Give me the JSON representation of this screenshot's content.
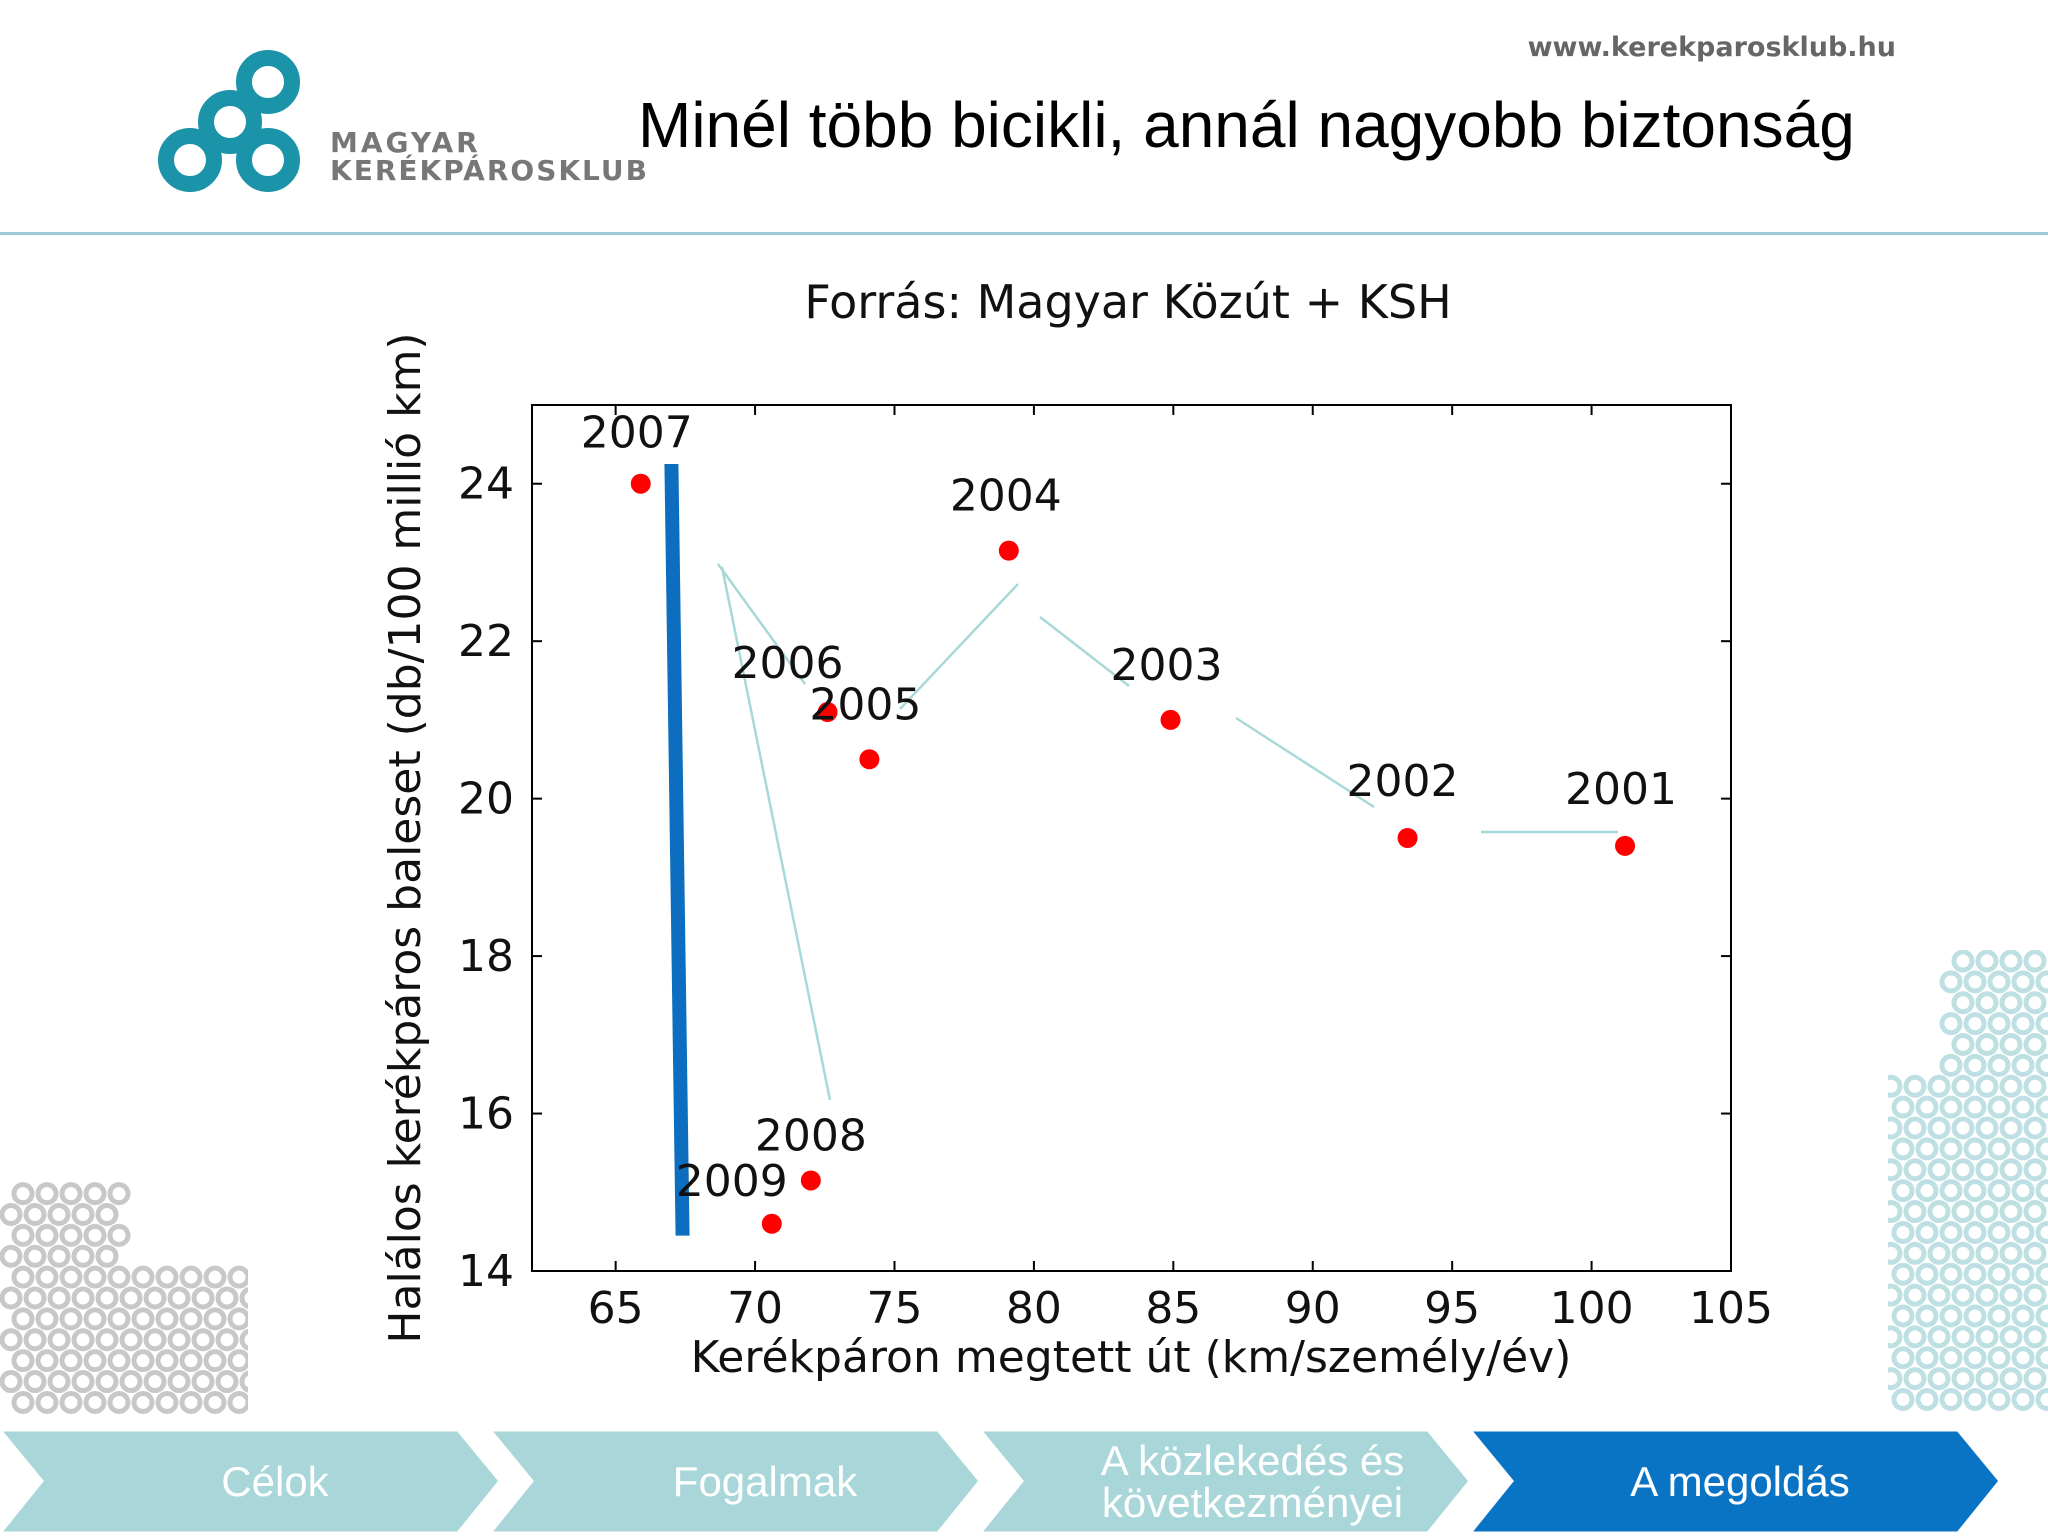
{
  "header": {
    "site_url": "www.kerekparosklub.hu",
    "title": "Minél több bicikli, annál nagyobb biztonság",
    "logo": {
      "line1": "MAGYAR",
      "line2": "KERÉKPÁROSKLUB",
      "color": "#1b93a8"
    }
  },
  "chart_data": {
    "type": "scatter",
    "title": "Forrás: Magyar Közút + KSH",
    "xlabel": "Kerékpáron megtett út (km/személy/év)",
    "ylabel": "Halálos kerékpáros baleset (db/100 millió km)",
    "xlim": [
      62,
      105
    ],
    "ylim": [
      14,
      25
    ],
    "x_ticks": [
      65,
      70,
      75,
      80,
      85,
      90,
      95,
      100,
      105
    ],
    "y_ticks": [
      14,
      16,
      18,
      20,
      22,
      24
    ],
    "points": [
      {
        "label": "2001",
        "x": 101.2,
        "y": 19.4
      },
      {
        "label": "2002",
        "x": 93.4,
        "y": 19.5
      },
      {
        "label": "2003",
        "x": 84.9,
        "y": 21.0
      },
      {
        "label": "2004",
        "x": 79.1,
        "y": 23.15
      },
      {
        "label": "2005",
        "x": 74.1,
        "y": 20.5
      },
      {
        "label": "2006",
        "x": 72.6,
        "y": 21.1
      },
      {
        "label": "2007",
        "x": 65.9,
        "y": 24.0
      },
      {
        "label": "2008",
        "x": 72.0,
        "y": 15.15
      },
      {
        "label": "2009",
        "x": 70.6,
        "y": 14.6
      }
    ],
    "marker_color": "#ff0000",
    "connector_color": "#a8d8d8",
    "highlight": {
      "x_from": 67.0,
      "x_to": 67.4,
      "y_from": 24.25,
      "y_to": 14.45,
      "color": "#0d6ebf"
    },
    "grid": false
  },
  "nav": {
    "items": [
      {
        "label": "Célok",
        "active": false
      },
      {
        "label": "Fogalmak",
        "active": false
      },
      {
        "label": "A közlekedés és következményei",
        "active": false
      },
      {
        "label": "A megoldás",
        "active": true
      }
    ],
    "inactive_color": "#a9d6d8",
    "active_color": "#0a74c4"
  }
}
